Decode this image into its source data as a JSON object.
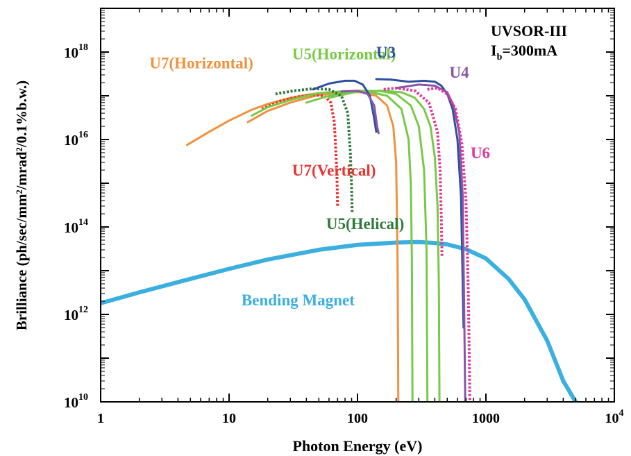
{
  "chart_data": {
    "type": "line",
    "xlabel": "Photon Energy (eV)",
    "ylabel": "Brilliance (ph/sec/mm²/mrad²/0.1%b.w.)",
    "xscale": "log",
    "yscale": "log",
    "xlim": [
      1,
      10000
    ],
    "ylim": [
      10000000000.0,
      1e+19
    ],
    "x_ticks": [
      {
        "value": 1,
        "base": "1",
        "exp": ""
      },
      {
        "value": 10,
        "base": "10",
        "exp": ""
      },
      {
        "value": 100,
        "base": "100",
        "exp": ""
      },
      {
        "value": 1000,
        "base": "1000",
        "exp": ""
      },
      {
        "value": 10000,
        "base": "10",
        "exp": "4"
      }
    ],
    "y_ticks": [
      {
        "value": 10000000000.0,
        "base": "10",
        "exp": "10"
      },
      {
        "value": 1000000000000.0,
        "base": "10",
        "exp": "12"
      },
      {
        "value": 100000000000000.0,
        "base": "10",
        "exp": "14"
      },
      {
        "value": 1e+16,
        "base": "10",
        "exp": "16"
      },
      {
        "value": 1e+18,
        "base": "10",
        "exp": "18"
      }
    ],
    "annotations": {
      "machine": "UVSOR-III",
      "current_main": "I",
      "current_sub": "b",
      "current_value": "=300mA"
    },
    "series": [
      {
        "name": "Bending Magnet",
        "color": "#3aafe0",
        "dash": "solid",
        "width": 6,
        "label_x": 12.5,
        "label_y": 1600000000000.0,
        "x": [
          1,
          2,
          5,
          10,
          20,
          50,
          100,
          200,
          300,
          400,
          500,
          700,
          1000,
          1500,
          2000,
          3000,
          4000,
          5000
        ],
        "y": [
          1800000000000.0,
          3200000000000.0,
          6500000000000.0,
          11000000000000.0,
          18000000000000.0,
          30000000000000.0,
          39000000000000.0,
          44000000000000.0,
          45000000000000.0,
          43000000000000.0,
          40000000000000.0,
          31000000000000.0,
          19000000000000.0,
          6500000000000.0,
          2200000000000.0,
          250000000000.0,
          30000000000.0,
          10000000000.0
        ]
      },
      {
        "name": "U7(Horizontal)",
        "color": "#f0913e",
        "dash": "solid",
        "width": 3,
        "label_x": 2.4,
        "label_y": 4.2e+17,
        "segments": [
          {
            "x": [
              4.7,
              7,
              10,
              15,
              20,
              30,
              40,
              50,
              60,
              70
            ],
            "y": [
              7500000000000000.0,
              1.5e+16,
              2.7e+16,
              4.8e+16,
              6.5e+16,
              9e+16,
              1.05e+17,
              1.15e+17,
              1.2e+17,
              1.22e+17
            ]
          },
          {
            "x": [
              14,
              20,
              30,
              50,
              80,
              110,
              140,
              170,
              190,
              200,
              205,
              208
            ],
            "y": [
              2.5e+16,
              4.5e+16,
              7e+16,
              1.05e+17,
              1.22e+17,
              1.2e+17,
              1e+17,
              6e+16,
              2e+16,
              3000000000000000.0,
              20000000000000.0,
              10000000000.0
            ]
          }
        ]
      },
      {
        "name": "U7(Vertical)",
        "color": "#e8332e",
        "dash": "dotted",
        "width": 4,
        "label_x": 31,
        "label_y": 1500000000000000.0,
        "x": [
          18,
          25,
          35,
          45,
          55,
          62,
          66,
          69,
          70
        ],
        "y": [
          5e+16,
          7.5e+16,
          9.5e+16,
          1.05e+17,
          1e+17,
          7e+16,
          2.5e+16,
          2000000000000000.0,
          300000000000000.0
        ]
      },
      {
        "name": "U5(Horizontal)",
        "color": "#78c948",
        "dash": "solid",
        "width": 3,
        "label_x": 31,
        "label_y": 6.8e+17,
        "segments": [
          {
            "x": [
              15,
              20,
              30,
              50,
              80,
              120,
              170,
              220,
              250,
              260,
              265,
              268
            ],
            "y": [
              3.5e+16,
              5.5e+16,
              8e+16,
              1.15e+17,
              1.28e+17,
              1.25e+17,
              1e+17,
              5e+16,
              1e+16,
              1000000000000000.0,
              20000000000000.0,
              10000000000.0
            ]
          },
          {
            "x": [
              40,
              60,
              100,
              150,
              200,
              260,
              300,
              330,
              345,
              350
            ],
            "y": [
              7e+16,
              1e+17,
              1.3e+17,
              1.28e+17,
              1.1e+17,
              6e+16,
              2e+16,
              2000000000000000.0,
              30000000000000.0,
              10000000000.0
            ]
          },
          {
            "x": [
              60,
              100,
              160,
              220,
              280,
              330,
              370,
              400,
              420,
              430,
              435
            ],
            "y": [
              9e+16,
              1.25e+17,
              1.3e+17,
              1.2e+17,
              9e+16,
              5e+16,
              2e+16,
              4000000000000000.0,
              300000000000000.0,
              5000000000000.0,
              10000000000.0
            ]
          }
        ]
      },
      {
        "name": "U5(Helical)",
        "color": "#2f7a3a",
        "dash": "dotted",
        "width": 4,
        "label_x": 57,
        "label_y": 90000000000000.0,
        "x": [
          23,
          32,
          45,
          60,
          75,
          84,
          88,
          90,
          91
        ],
        "y": [
          1.1e+17,
          1.3e+17,
          1.45e+17,
          1.4e+17,
          1e+17,
          4e+16,
          5000000000000000.0,
          800000000000000.0,
          200000000000000.0
        ]
      },
      {
        "name": "U3",
        "color": "#2f4f9f",
        "dash": "solid",
        "width": 3,
        "label_x": 140,
        "label_y": 7.5e+17,
        "segments": [
          {
            "x": [
              45,
              60,
              80,
              95,
              110,
              125,
              135,
              140
            ],
            "y": [
              1.4e+17,
              1.9e+17,
              2.2e+17,
              2.2e+17,
              1.8e+17,
              1e+17,
              3e+16,
              1.5e+16
            ]
          },
          {
            "x": [
              140,
              180,
              250,
              330,
              400,
              450,
              500,
              550,
              600,
              640,
              660,
              670
            ],
            "y": [
              2.4e+17,
              2.35e+17,
              2.1e+17,
              2.2e+17,
              2.1e+17,
              1.7e+17,
              1.1e+17,
              5e+16,
              1e+16,
              500000000000000.0,
              5000000000000.0,
              500000000000.0
            ]
          }
        ]
      },
      {
        "name": "U4",
        "color": "#8a55a8",
        "dash": "solid",
        "width": 3,
        "label_x": 520,
        "label_y": 2.6e+17,
        "segments": [
          {
            "x": [
              75,
              100,
              120,
              135,
              142,
              146
            ],
            "y": [
              1.25e+17,
              1.3e+17,
              1.1e+17,
              6e+16,
              2e+16,
              1.4e+16
            ]
          },
          {
            "x": [
              200,
              300,
              400,
              500,
              560,
              620,
              660,
              680,
              690
            ],
            "y": [
              1.5e+17,
              1.8e+17,
              1.7e+17,
              1.2e+17,
              6e+16,
              1.5e+16,
              500000000000000.0,
              500000000000.0,
              10000000000.0
            ]
          }
        ]
      },
      {
        "name": "U6",
        "color": "#e0379b",
        "dash": "dotted",
        "width": 4,
        "label_x": 760,
        "label_y": 3700000000000000.0,
        "segments": [
          {
            "x": [
              160,
              200,
              280,
              360,
              420,
              440,
              450,
              455
            ],
            "y": [
              1.4e+17,
              1.5e+17,
              1.3e+17,
              7e+16,
              1.5e+16,
              2000000000000000.0,
              150000000000000.0,
              20000000000000.0
            ]
          },
          {
            "x": [
              350,
              420,
              500,
              580,
              650,
              700,
              730,
              750
            ],
            "y": [
              1.4e+17,
              1.5e+17,
              1.1e+17,
              5e+16,
              8000000000000000.0,
              400000000000000.0,
              3000000000000.0,
              10000000000.0
            ]
          }
        ]
      }
    ]
  }
}
